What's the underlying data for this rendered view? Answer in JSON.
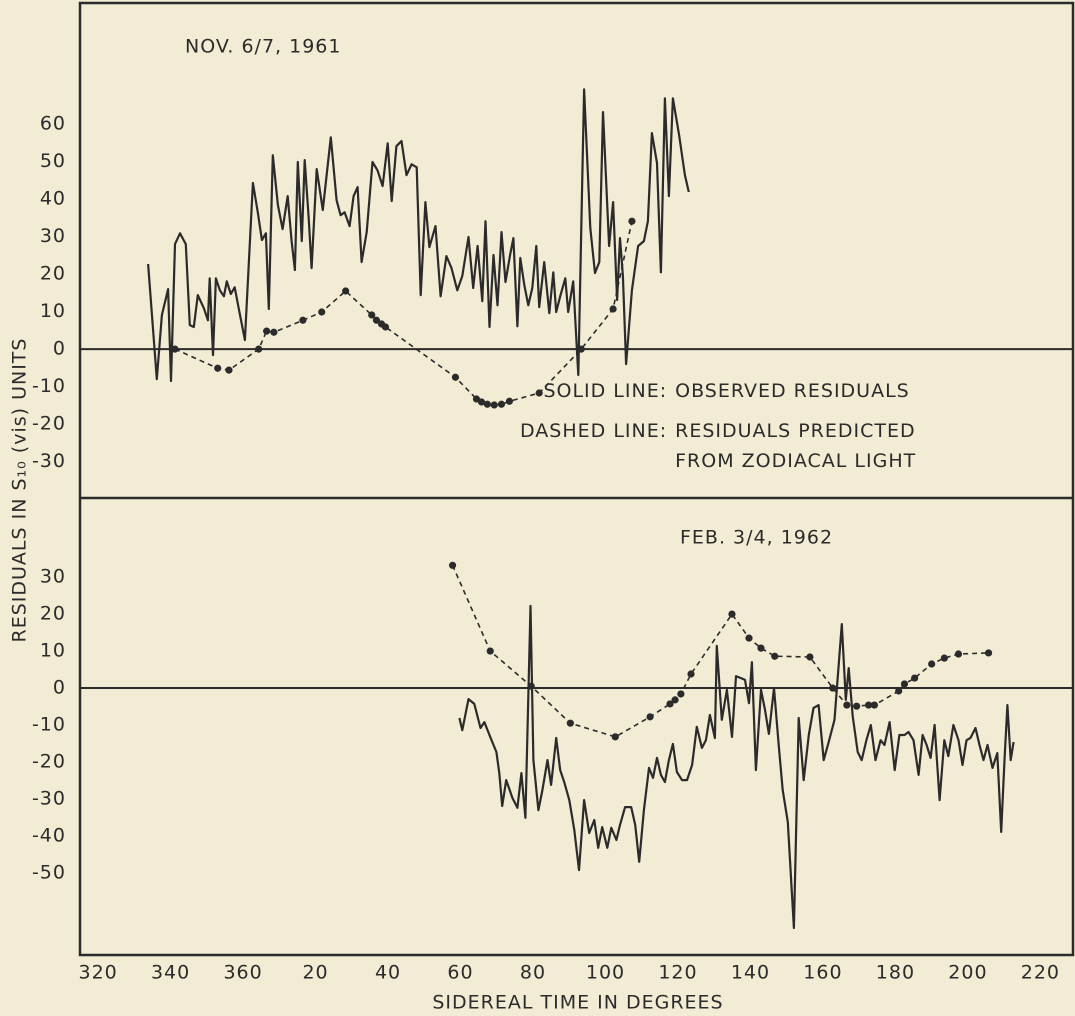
{
  "chart_data": [
    {
      "type": "line",
      "title": "NOV. 6/7, 1961",
      "ylabel": "RESIDUALS IN S₁₀ (vis) UNITS",
      "xlim": [
        315,
        589
      ],
      "ylim": [
        -39.7,
        92.3
      ],
      "yticks": [
        -30,
        -20,
        -10,
        0,
        10,
        20,
        30,
        40,
        50,
        60
      ],
      "zero_line": true,
      "legend_keys": [
        "SOLID LINE:",
        "DASHED LINE:"
      ],
      "series": [
        {
          "name": "OBSERVED RESIDUALS",
          "color": "#2b2b2b",
          "style": "solid",
          "x": [
            333.8,
            336.2,
            337.6,
            339.3,
            340.1,
            341.2,
            342.6,
            344.2,
            345.3,
            346.4,
            347.5,
            349.2,
            350.3,
            350.8,
            351.7,
            352.5,
            353.6,
            354.7,
            355.5,
            356.6,
            357.7,
            358.8,
            360.5,
            362.7,
            364.1,
            365.2,
            366.3,
            367.1,
            368.2,
            369.6,
            370.9,
            372.3,
            373.4,
            374.3,
            375.1,
            376.2,
            377.0,
            378.1,
            378.9,
            380.3,
            382.0,
            384.2,
            385.8,
            386.9,
            388.0,
            389.4,
            390.5,
            391.6,
            392.7,
            394.1,
            395.7,
            397.1,
            398.5,
            399.9,
            401.0,
            402.3,
            403.7,
            405.1,
            406.5,
            407.9,
            409.0,
            410.3,
            411.4,
            413.1,
            414.5,
            416.1,
            417.5,
            419.1,
            420.5,
            422.2,
            423.5,
            424.7,
            426.0,
            426.9,
            428.0,
            429.1,
            430.2,
            431.3,
            432.4,
            433.7,
            434.6,
            435.7,
            436.5,
            437.6,
            438.7,
            439.8,
            440.9,
            441.7,
            443.1,
            444.5,
            445.6,
            446.4,
            447.5,
            448.9,
            449.7,
            451.1,
            452.5,
            454.1,
            455.8,
            457.1,
            458.3,
            459.3,
            461.0,
            462.1,
            463.2,
            464.0,
            464.8,
            465.7,
            467.3,
            469.0,
            470.6,
            471.7,
            472.8,
            474.2,
            475.3,
            476.4,
            477.5,
            478.6,
            480.3,
            481.9,
            483.0
          ],
          "values": [
            22.7,
            -8.0,
            9.1,
            16.0,
            -8.5,
            28.0,
            30.9,
            28.0,
            6.4,
            5.9,
            14.4,
            10.9,
            7.7,
            18.9,
            -1.6,
            18.9,
            15.7,
            14.1,
            18.1,
            14.7,
            16.5,
            10.9,
            2.4,
            44.3,
            36.3,
            29.1,
            30.9,
            10.7,
            51.7,
            38.4,
            32.0,
            40.8,
            28.8,
            21.1,
            49.9,
            28.8,
            50.4,
            34.9,
            21.6,
            48.0,
            37.1,
            56.5,
            39.7,
            35.7,
            36.5,
            32.8,
            40.8,
            43.2,
            23.2,
            31.2,
            49.9,
            47.7,
            43.5,
            54.9,
            39.5,
            54.1,
            55.5,
            46.4,
            49.3,
            48.5,
            14.4,
            39.2,
            27.2,
            32.8,
            14.1,
            24.8,
            21.6,
            15.7,
            19.5,
            29.9,
            16.3,
            27.5,
            12.8,
            34.1,
            5.9,
            25.1,
            11.7,
            31.2,
            17.9,
            25.3,
            29.6,
            6.1,
            24.3,
            17.1,
            11.7,
            16.3,
            27.5,
            11.2,
            23.2,
            9.6,
            20.5,
            9.9,
            14.1,
            18.9,
            9.9,
            18.1,
            -6.9,
            69.3,
            32.3,
            20.3,
            23.2,
            63.2,
            27.5,
            39.2,
            13.1,
            29.6,
            19.5,
            -4.0,
            15.7,
            27.5,
            28.8,
            34.1,
            57.6,
            49.6,
            20.5,
            66.9,
            40.8,
            66.9,
            57.1,
            46.4,
            41.9
          ]
        },
        {
          "name": "RESIDUALS PREDICTED FROM ZODIACAL LIGHT",
          "color": "#2b2b2b",
          "style": "dashed",
          "x": [
            341.2,
            353.0,
            356.1,
            364.3,
            366.5,
            368.5,
            376.5,
            381.7,
            388.3,
            395.5,
            396.8,
            398.2,
            399.3,
            418.6,
            424.4,
            425.8,
            427.4,
            429.3,
            431.3,
            433.5,
            441.7,
            453.3,
            462.1,
            467.3
          ],
          "values": [
            0,
            -5.1,
            -5.6,
            0,
            4.8,
            4.5,
            7.7,
            9.9,
            15.5,
            9.1,
            7.7,
            6.7,
            5.9,
            -7.5,
            -13.3,
            -14.1,
            -14.7,
            -14.9,
            -14.7,
            -13.9,
            -11.7,
            0,
            10.7,
            34.1
          ]
        }
      ]
    },
    {
      "type": "line",
      "title": "FEB. 3/4, 1962",
      "xlabel": "SIDEREAL  TIME  IN  DEGREES",
      "xlim": [
        315,
        589
      ],
      "xticks": [
        320,
        340,
        360,
        {
          "value": 380,
          "label": "20"
        },
        {
          "value": 400,
          "label": "40"
        },
        {
          "value": 420,
          "label": "60"
        },
        {
          "value": 440,
          "label": "80"
        },
        {
          "value": 460,
          "label": "100"
        },
        {
          "value": 480,
          "label": "120"
        },
        {
          "value": 500,
          "label": "140"
        },
        {
          "value": 520,
          "label": "160"
        },
        {
          "value": 540,
          "label": "180"
        },
        {
          "value": 560,
          "label": "200"
        },
        {
          "value": 580,
          "label": "220"
        }
      ],
      "ylim": [
        -72.2,
        51.4
      ],
      "yticks": [
        -50,
        -40,
        -30,
        -20,
        -10,
        0,
        10,
        20,
        30
      ],
      "zero_line": true,
      "series": [
        {
          "color": "#2b2b2b",
          "style": "solid",
          "x": [
            419.7,
            420.5,
            422.2,
            423.8,
            425.5,
            426.6,
            428.2,
            429.9,
            430.7,
            431.5,
            432.6,
            434.3,
            435.7,
            436.8,
            437.9,
            439.3,
            440.1,
            441.5,
            442.6,
            444.0,
            445.0,
            446.4,
            447.5,
            448.6,
            450.0,
            451.4,
            452.7,
            454.1,
            455.5,
            456.9,
            458.0,
            459.1,
            460.5,
            461.6,
            463.0,
            464.0,
            465.4,
            467.1,
            468.2,
            469.3,
            470.6,
            472.0,
            473.1,
            474.2,
            475.3,
            476.4,
            477.5,
            478.6,
            479.7,
            481.1,
            482.5,
            483.9,
            485.2,
            486.6,
            487.7,
            488.8,
            490.2,
            490.7,
            492.1,
            493.5,
            494.9,
            496.0,
            497.4,
            498.5,
            499.6,
            500.4,
            501.5,
            502.9,
            504.0,
            505.1,
            506.5,
            507.8,
            508.9,
            510.3,
            512.0,
            513.3,
            514.7,
            516.1,
            517.4,
            518.8,
            520.2,
            521.6,
            523.2,
            525.2,
            526.3,
            527.1,
            528.2,
            529.6,
            530.7,
            532.0,
            533.2,
            534.5,
            535.9,
            537.0,
            538.4,
            539.8,
            541.1,
            542.5,
            543.6,
            545.0,
            546.4,
            547.5,
            548.6,
            549.7,
            550.8,
            552.2,
            553.5,
            554.6,
            556.0,
            557.4,
            558.5,
            559.6,
            560.7,
            562.1,
            563.2,
            564.3,
            565.4,
            566.8,
            568.1,
            569.2,
            570.1,
            570.9,
            571.8,
            572.6
          ],
          "values": [
            -8.1,
            -11.4,
            -3.0,
            -4.3,
            -10.8,
            -9.2,
            -13.2,
            -17.3,
            -23.0,
            -31.9,
            -24.9,
            -29.7,
            -32.4,
            -23.0,
            -35.1,
            22.2,
            -19.5,
            -33.0,
            -27.6,
            -19.5,
            -26.2,
            -13.5,
            -22.2,
            -25.4,
            -30.3,
            -38.4,
            -49.2,
            -30.3,
            -39.2,
            -35.7,
            -43.2,
            -37.6,
            -43.2,
            -37.8,
            -41.1,
            -37.0,
            -32.2,
            -32.2,
            -37.0,
            -47.0,
            -33.0,
            -21.6,
            -24.3,
            -18.9,
            -23.5,
            -25.4,
            -19.5,
            -15.1,
            -22.7,
            -24.9,
            -24.9,
            -20.8,
            -10.5,
            -16.2,
            -14.1,
            -7.3,
            -13.5,
            11.4,
            -8.6,
            -0.5,
            -13.2,
            3.2,
            2.7,
            2.2,
            -4.1,
            7.0,
            -22.2,
            -0.5,
            -5.9,
            -12.4,
            0,
            -15.4,
            -27.6,
            -36.2,
            -64.9,
            -8.1,
            -24.9,
            -12.7,
            -5.4,
            -4.6,
            -19.5,
            -14.6,
            -8.6,
            17.3,
            -3.2,
            5.4,
            -7.6,
            -17.3,
            -19.5,
            -14.1,
            -10.0,
            -19.5,
            -14.1,
            -15.4,
            -9.2,
            -22.2,
            -12.7,
            -12.7,
            -11.9,
            -14.1,
            -23.5,
            -12.7,
            -15.4,
            -18.9,
            -10.0,
            -30.3,
            -14.1,
            -18.4,
            -10.0,
            -14.1,
            -20.8,
            -14.1,
            -13.5,
            -10.8,
            -15.4,
            -19.5,
            -15.4,
            -21.6,
            -17.6,
            -38.9,
            -19.5,
            -4.6,
            -19.5,
            -14.6
          ]
        },
        {
          "color": "#2b2b2b",
          "style": "dashed",
          "x": [
            417.8,
            428.2,
            439.5,
            450.3,
            462.7,
            472.3,
            477.8,
            479.2,
            480.8,
            483.6,
            494.9,
            499.6,
            502.9,
            506.7,
            516.4,
            522.7,
            526.6,
            529.3,
            532.6,
            534.2,
            540.9,
            542.5,
            545.3,
            550.0,
            553.5,
            557.4,
            565.7
          ],
          "values": [
            33.2,
            10.0,
            0.5,
            -9.5,
            -13.2,
            -7.8,
            -4.3,
            -3.2,
            -1.6,
            3.8,
            20.0,
            13.5,
            10.8,
            8.6,
            8.4,
            0,
            -4.6,
            -4.9,
            -4.6,
            -4.6,
            -0.8,
            1.1,
            2.7,
            6.5,
            8.1,
            9.2,
            9.5
          ]
        }
      ]
    }
  ]
}
